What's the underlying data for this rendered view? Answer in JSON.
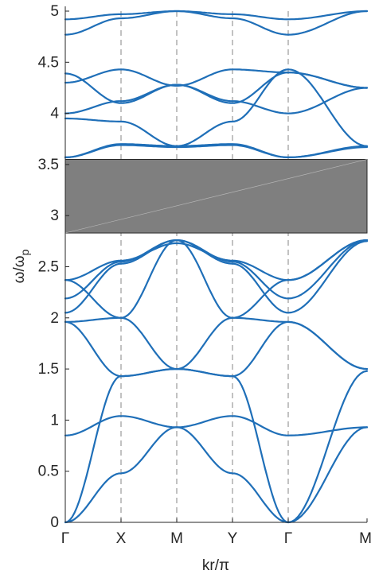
{
  "chart_data": {
    "type": "line",
    "title": "",
    "xlabel": "kr/π",
    "ylabel": "ω/ω_p",
    "ylabel_main": "ω/ω",
    "ylabel_sub": "p",
    "ylim": [
      0,
      5
    ],
    "y_ticks": [
      "0",
      "0.5",
      "1",
      "1.5",
      "2",
      "2.5",
      "3",
      "3.5",
      "4",
      "4.5",
      "5"
    ],
    "x_ticks": [
      "Γ",
      "X",
      "M",
      "Y",
      "Γ",
      "M"
    ],
    "grid": false,
    "legend": "none",
    "band_gap": {
      "y_range": [
        2.83,
        3.55
      ],
      "color": "#7f7f7f"
    },
    "line_color": "#1f6fb8",
    "x_positions": [
      0,
      1,
      2,
      3,
      4,
      5
    ],
    "series": [
      {
        "values": [
          0.0,
          0.48,
          0.93,
          0.48,
          0.0,
          0.93
        ]
      },
      {
        "values": [
          0.85,
          1.04,
          0.93,
          1.04,
          0.85,
          0.93
        ]
      },
      {
        "values": [
          0.0,
          1.43,
          1.5,
          1.43,
          0.0,
          1.48
        ]
      },
      {
        "values": [
          1.96,
          1.43,
          1.5,
          1.43,
          1.96,
          1.5
        ]
      },
      {
        "values": [
          1.96,
          2.0,
          1.5,
          2.0,
          1.96,
          1.5
        ]
      },
      {
        "values": [
          2.05,
          2.53,
          2.76,
          2.53,
          2.05,
          2.75
        ]
      },
      {
        "values": [
          2.19,
          2.55,
          2.76,
          2.55,
          2.19,
          2.76
        ]
      },
      {
        "values": [
          2.37,
          2.56,
          2.73,
          2.56,
          2.37,
          2.76
        ]
      },
      {
        "values": [
          2.37,
          2.0,
          2.76,
          2.0,
          2.37,
          2.76
        ]
      },
      {
        "values": [
          3.57,
          3.69,
          3.67,
          3.69,
          3.57,
          3.68
        ]
      },
      {
        "values": [
          3.57,
          3.7,
          3.68,
          3.7,
          3.57,
          3.67
        ]
      },
      {
        "values": [
          3.95,
          3.92,
          3.68,
          3.92,
          4.43,
          3.68
        ]
      },
      {
        "values": [
          4.0,
          4.12,
          4.28,
          4.12,
          4.0,
          4.25
        ]
      },
      {
        "values": [
          4.3,
          4.43,
          4.27,
          4.43,
          4.4,
          4.25
        ]
      },
      {
        "values": [
          4.39,
          4.1,
          4.28,
          4.1,
          4.4,
          4.25
        ]
      },
      {
        "values": [
          4.77,
          4.93,
          5.0,
          4.93,
          4.77,
          5.0
        ]
      },
      {
        "values": [
          4.92,
          4.97,
          5.0,
          4.97,
          4.92,
          5.0
        ]
      }
    ]
  }
}
